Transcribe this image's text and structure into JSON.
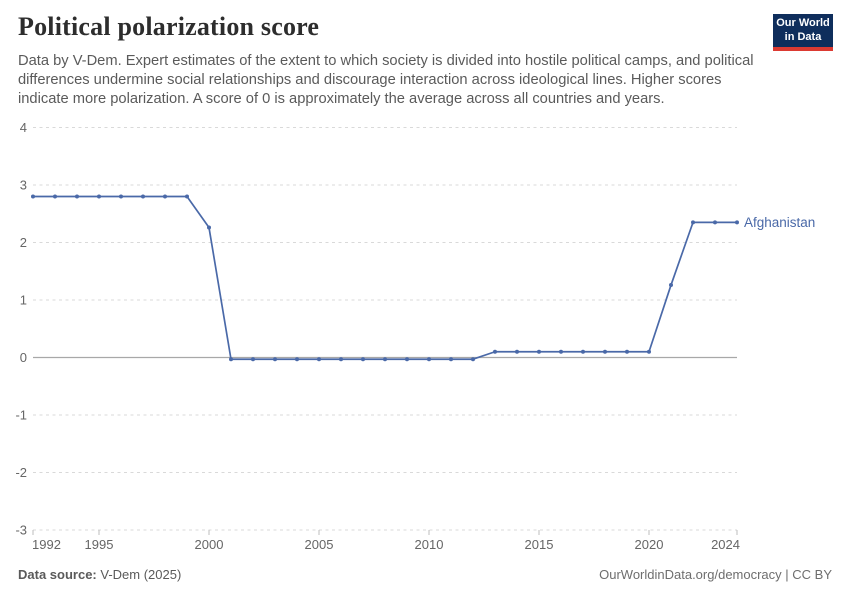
{
  "header": {
    "title": "Political polarization score",
    "subtitle": "Data by V-Dem. Expert estimates of the extent to which society is divided into hostile political camps, and political differences undermine social relationships and discourage interaction across ideological lines. Higher scores indicate more polarization. A score of 0 is approximately the average across all countries and years.",
    "logo": {
      "line1": "Our World",
      "line2": "in Data"
    }
  },
  "colors": {
    "series_blue": "#4a69a8",
    "logo_navy": "#0f2e5c",
    "logo_red": "#dc3a32",
    "gridline": "#d9d9d9",
    "zero_line": "#a8a8a8",
    "axis_text": "#666666"
  },
  "chart_data": {
    "type": "line",
    "title": "Political polarization score",
    "xlabel": "",
    "ylabel": "",
    "xlim": [
      1992,
      2024
    ],
    "ylim": [
      -3,
      4
    ],
    "grid": "horizontal dashed gridlines, solid line at 0",
    "legend": "end-of-line entity label",
    "yticks": [
      4,
      3,
      2,
      1,
      0,
      -1,
      -2,
      -3
    ],
    "xticks": [
      1992,
      1995,
      2000,
      2005,
      2010,
      2015,
      2020,
      2024
    ],
    "x": [
      1992,
      1993,
      1994,
      1995,
      1996,
      1997,
      1998,
      1999,
      2000,
      2001,
      2002,
      2003,
      2004,
      2005,
      2006,
      2007,
      2008,
      2009,
      2010,
      2011,
      2012,
      2013,
      2014,
      2015,
      2016,
      2017,
      2018,
      2019,
      2020,
      2021,
      2022,
      2023,
      2024
    ],
    "series": [
      {
        "name": "Afghanistan",
        "color": "#4a69a8",
        "values": [
          2.8,
          2.8,
          2.8,
          2.8,
          2.8,
          2.8,
          2.8,
          2.8,
          2.26,
          -0.03,
          -0.03,
          -0.03,
          -0.03,
          -0.03,
          -0.03,
          -0.03,
          -0.03,
          -0.03,
          -0.03,
          -0.03,
          -0.03,
          0.1,
          0.1,
          0.1,
          0.1,
          0.1,
          0.1,
          0.1,
          0.1,
          1.26,
          2.35,
          2.35,
          2.35
        ]
      }
    ]
  },
  "footer": {
    "source_label": "Data source:",
    "source_value": "V-Dem (2025)",
    "credit": "OurWorldinData.org/democracy | CC BY"
  }
}
